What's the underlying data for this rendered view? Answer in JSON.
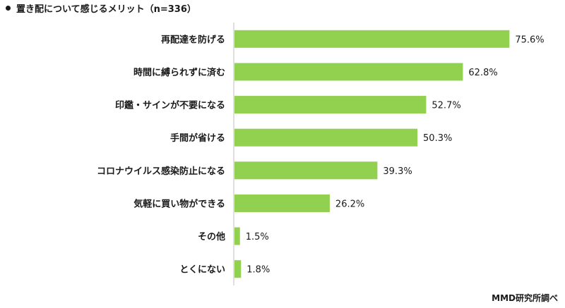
{
  "chart_data": {
    "type": "bar",
    "orientation": "horizontal",
    "title": "置き配について感じるメリット（n=336）",
    "categories": [
      "再配達を防げる",
      "時間に縛られずに済む",
      "印鑑・サインが不要になる",
      "手間が省ける",
      "コロナウイルス感染防止になる",
      "気軽に買い物ができる",
      "その他",
      "とくにない"
    ],
    "values": [
      75.6,
      62.8,
      52.7,
      50.3,
      39.3,
      26.2,
      1.5,
      1.8
    ],
    "value_labels": [
      "75.6%",
      "62.8%",
      "52.7%",
      "50.3%",
      "39.3%",
      "26.2%",
      "1.5%",
      "1.8%"
    ],
    "xlim": [
      0,
      100
    ],
    "bar_color": "#92d050",
    "axis_color": "#bfbfbf",
    "grid": false
  },
  "source": "MMD研究所調べ"
}
